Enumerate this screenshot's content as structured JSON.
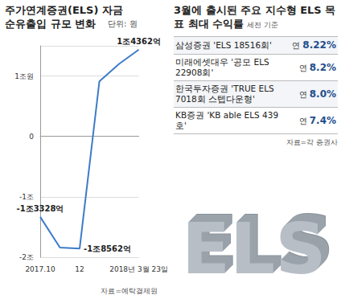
{
  "chart_data": {
    "type": "line",
    "title": "주가연계증권(ELS) 자금 순유출입 규모 변화",
    "subtitle": "단위: 원",
    "source": "자료=예탁결제원",
    "categories": [
      "2017.10",
      null,
      "12",
      null,
      null,
      "2018년 3월 23일"
    ],
    "values": [
      -13328,
      -18400,
      -18562,
      9100,
      12000,
      14362
    ],
    "value_labels": [
      "-1조3328억",
      null,
      "-1조8562억",
      null,
      null,
      "1조4362억"
    ],
    "data_labels": true,
    "color": "#3d7cc9",
    "marker": "none",
    "ylim": [
      -20000,
      15000
    ],
    "yticks": [
      {
        "value": -20000,
        "label": "-2조"
      },
      {
        "value": -10000,
        "label": "-1조"
      },
      0,
      {
        "value": 10000,
        "label": "1조원"
      }
    ],
    "grid": true
  },
  "table": {
    "title": "3월에 출시된 주요 지수형 ELS 목표 최대 수익률",
    "subtitle": "세전 기준",
    "rows": [
      {
        "company": "삼성증권",
        "product": "'ELS 18516회'",
        "prefix": "연",
        "rate": "8.22%"
      },
      {
        "company": "미래에셋대우",
        "product": "'공모 ELS 22908회'",
        "prefix": "연",
        "rate": "8.2%"
      },
      {
        "company": "한국투자증권",
        "product": "'TRUE ELS 7018회 스텝다운형'",
        "prefix": "연",
        "rate": "8.0%"
      },
      {
        "company": "KB증권",
        "product": "'KB able ELS 439호'",
        "prefix": "연",
        "rate": "7.4%"
      }
    ],
    "source": "자료=각 증권사"
  },
  "graphic_text": "ELS"
}
